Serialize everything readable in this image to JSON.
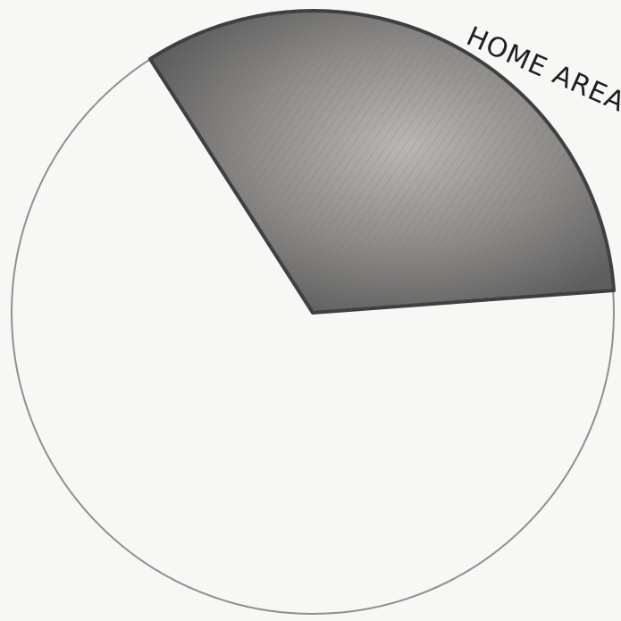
{
  "diagram": {
    "shaded_region": {
      "label": "HOME AREA",
      "shade_color": "#5e5e5e"
    },
    "outline_color": "#8f8f8f",
    "paper_color": "#f7f7f6"
  }
}
